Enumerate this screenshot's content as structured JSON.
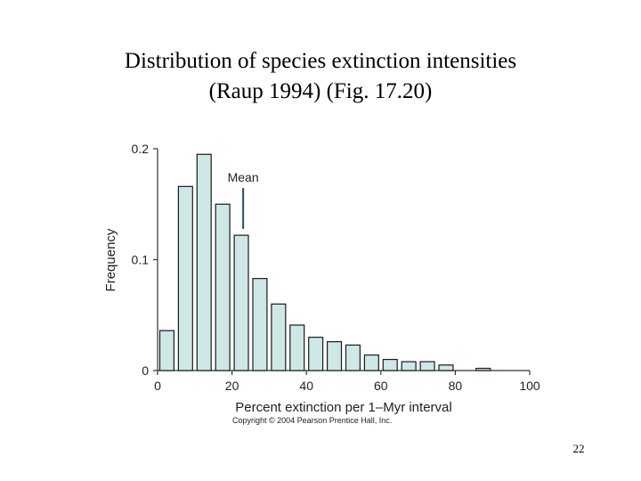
{
  "slide": {
    "title_line1": "Distribution of species extinction intensities",
    "title_line2": "(Raup 1994) (Fig. 17.20)",
    "page_number": "22"
  },
  "chart_data": {
    "type": "bar",
    "title": "Distribution of species extinction intensities (Raup 1994) (Fig. 17.20)",
    "xlabel": "Percent extinction per 1–Myr interval",
    "ylabel": "Frequency",
    "xlim": [
      0,
      100
    ],
    "ylim": [
      0,
      0.2
    ],
    "x_ticks": [
      "0",
      "20",
      "40",
      "60",
      "80",
      "100"
    ],
    "y_ticks": [
      "0",
      "0.1",
      "0.2"
    ],
    "bin_width": 5,
    "bin_starts": [
      0,
      5,
      10,
      15,
      20,
      25,
      30,
      35,
      40,
      45,
      50,
      55,
      60,
      65,
      70,
      75,
      80,
      85
    ],
    "values": [
      0.036,
      0.166,
      0.195,
      0.15,
      0.122,
      0.083,
      0.06,
      0.041,
      0.03,
      0.026,
      0.023,
      0.014,
      0.01,
      0.008,
      0.008,
      0.005,
      0,
      0.002
    ],
    "annotation": {
      "text": "Mean",
      "x": 23
    },
    "bar_fill": "#cde8e6",
    "bar_stroke": "#1a1a1a",
    "copyright": "Copyright © 2004 Pearson Prentice Hall, Inc."
  }
}
